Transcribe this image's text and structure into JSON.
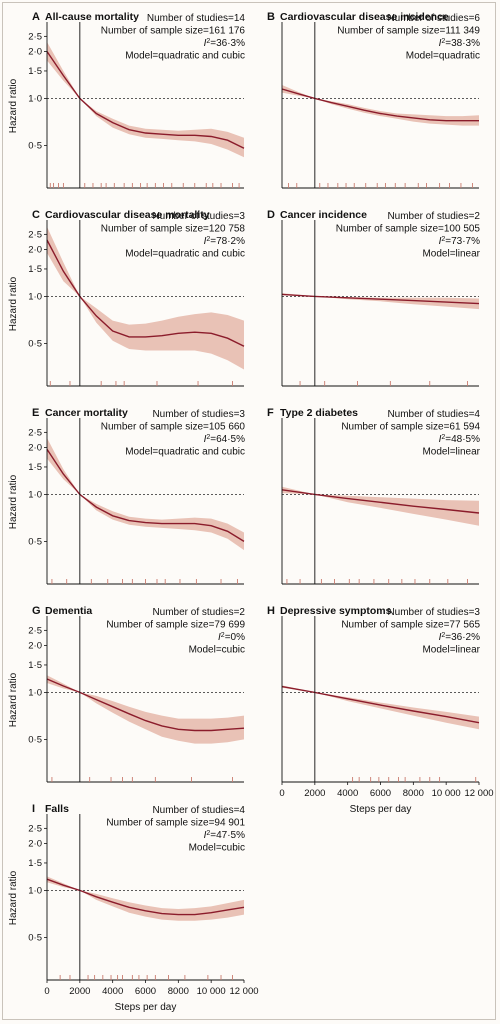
{
  "chart_data": [
    {
      "letter": "A",
      "title": "All-cause mortality",
      "type": "line",
      "stats": [
        "Number of studies=14",
        "Number of sample size=161 176",
        "I²=36·3%",
        "Model=quadratic and cubic"
      ],
      "ylabel": "Hazard ratio",
      "xlabel": "",
      "yticks": [
        {
          "v": 0.5,
          "label": "0·5"
        },
        {
          "v": 1.0,
          "label": "1·0"
        },
        {
          "v": 1.5,
          "label": "1·5"
        },
        {
          "v": 2.0,
          "label": "2·0"
        },
        {
          "v": 2.5,
          "label": "2·5"
        }
      ],
      "xticks": [],
      "reference_x": 2000,
      "reference_y": 1.0,
      "x": [
        0,
        1000,
        2000,
        3000,
        4000,
        5000,
        6000,
        7000,
        8000,
        9000,
        10000,
        11000,
        12000
      ],
      "hr": [
        2.0,
        1.4,
        1.0,
        0.8,
        0.7,
        0.63,
        0.6,
        0.59,
        0.58,
        0.58,
        0.57,
        0.54,
        0.48
      ],
      "lo": [
        1.75,
        1.3,
        1.0,
        0.77,
        0.65,
        0.59,
        0.56,
        0.55,
        0.54,
        0.53,
        0.51,
        0.47,
        0.42
      ],
      "hi": [
        2.3,
        1.5,
        1.0,
        0.83,
        0.74,
        0.67,
        0.64,
        0.63,
        0.62,
        0.63,
        0.64,
        0.61,
        0.56
      ],
      "rug": [
        200,
        400,
        700,
        1000,
        2300,
        2800,
        3300,
        3600,
        4100,
        4700,
        5200,
        5700,
        6100,
        6600,
        7100,
        7600,
        8300,
        9000,
        9700,
        10100,
        10600,
        11300,
        11700
      ]
    },
    {
      "letter": "B",
      "title": "Cardiovascular disease incidence",
      "type": "line",
      "stats": [
        "Number of studies=6",
        "Number of sample size=111 349",
        "I²=38·3%",
        "Model=quadratic"
      ],
      "ylabel": "",
      "xlabel": "",
      "yticks": [],
      "xticks": [],
      "reference_x": 2000,
      "reference_y": 1.0,
      "x": [
        0,
        1000,
        2000,
        3000,
        4000,
        5000,
        6000,
        7000,
        8000,
        9000,
        10000,
        11000,
        12000
      ],
      "hr": [
        1.15,
        1.07,
        1.0,
        0.94,
        0.89,
        0.84,
        0.8,
        0.77,
        0.75,
        0.73,
        0.72,
        0.72,
        0.72
      ],
      "lo": [
        1.09,
        1.04,
        1.0,
        0.92,
        0.86,
        0.81,
        0.77,
        0.74,
        0.71,
        0.69,
        0.68,
        0.67,
        0.67
      ],
      "hi": [
        1.22,
        1.1,
        1.0,
        0.96,
        0.92,
        0.87,
        0.83,
        0.8,
        0.79,
        0.78,
        0.77,
        0.77,
        0.78
      ],
      "rug": [
        400,
        900,
        2300,
        2800,
        3400,
        3900,
        4400,
        5100,
        5800,
        6300,
        6900,
        7500,
        8300,
        8800,
        9600,
        10200,
        10900,
        11600
      ]
    },
    {
      "letter": "C",
      "title": "Cardiovascular disease mortality",
      "type": "line",
      "stats": [
        "Number of studies=3",
        "Number of sample size=120 758",
        "I²=78·2%",
        "Model=quadratic and cubic"
      ],
      "ylabel": "Hazard ratio",
      "xlabel": "",
      "yticks": [
        {
          "v": 0.5,
          "label": "0·5"
        },
        {
          "v": 1.0,
          "label": "1·0"
        },
        {
          "v": 1.5,
          "label": "1·5"
        },
        {
          "v": 2.0,
          "label": "2·0"
        },
        {
          "v": 2.5,
          "label": "2·5"
        }
      ],
      "xticks": [],
      "reference_x": 2000,
      "reference_y": 1.0,
      "x": [
        0,
        1000,
        2000,
        3000,
        4000,
        5000,
        6000,
        7000,
        8000,
        9000,
        10000,
        11000,
        12000
      ],
      "hr": [
        2.3,
        1.45,
        1.0,
        0.75,
        0.6,
        0.55,
        0.55,
        0.56,
        0.58,
        0.59,
        0.58,
        0.54,
        0.48
      ],
      "lo": [
        1.9,
        1.25,
        1.0,
        0.68,
        0.52,
        0.46,
        0.45,
        0.45,
        0.45,
        0.45,
        0.43,
        0.39,
        0.34
      ],
      "hi": [
        2.8,
        1.65,
        1.0,
        0.84,
        0.7,
        0.66,
        0.67,
        0.7,
        0.74,
        0.77,
        0.79,
        0.76,
        0.7
      ],
      "rug": [
        200,
        1400,
        3300,
        4200,
        4700,
        6700,
        9200,
        11300
      ]
    },
    {
      "letter": "D",
      "title": "Cancer incidence",
      "type": "line",
      "stats": [
        "Number of studies=2",
        "Number of sample size=100 505",
        "I²=73·7%",
        "Model=linear"
      ],
      "ylabel": "",
      "xlabel": "",
      "yticks": [],
      "xticks": [],
      "reference_x": 2000,
      "reference_y": 1.0,
      "x": [
        0,
        2000,
        4000,
        6000,
        8000,
        10000,
        12000
      ],
      "hr": [
        1.03,
        1.0,
        0.98,
        0.96,
        0.94,
        0.92,
        0.9
      ],
      "lo": [
        1.02,
        1.0,
        0.96,
        0.93,
        0.89,
        0.86,
        0.83
      ],
      "hi": [
        1.05,
        1.0,
        0.99,
        0.98,
        0.98,
        0.98,
        0.97
      ],
      "rug": [
        1100,
        2600,
        4600,
        6600,
        9000,
        11300
      ]
    },
    {
      "letter": "E",
      "title": "Cancer mortality",
      "type": "line",
      "stats": [
        "Number of studies=3",
        "Number of sample size=105 660",
        "I²=64·5%",
        "Model=quadratic and cubic"
      ],
      "ylabel": "Hazard ratio",
      "xlabel": "",
      "yticks": [
        {
          "v": 0.5,
          "label": "0·5"
        },
        {
          "v": 1.0,
          "label": "1·0"
        },
        {
          "v": 1.5,
          "label": "1·5"
        },
        {
          "v": 2.0,
          "label": "2·0"
        },
        {
          "v": 2.5,
          "label": "2·5"
        }
      ],
      "xticks": [],
      "reference_x": 2000,
      "reference_y": 1.0,
      "x": [
        0,
        1000,
        2000,
        3000,
        4000,
        5000,
        6000,
        7000,
        8000,
        9000,
        10000,
        11000,
        12000
      ],
      "hr": [
        1.95,
        1.35,
        1.0,
        0.83,
        0.73,
        0.68,
        0.66,
        0.65,
        0.65,
        0.65,
        0.63,
        0.58,
        0.5
      ],
      "lo": [
        1.7,
        1.25,
        1.0,
        0.79,
        0.69,
        0.64,
        0.62,
        0.61,
        0.6,
        0.59,
        0.57,
        0.52,
        0.44
      ],
      "hi": [
        2.3,
        1.45,
        1.0,
        0.87,
        0.78,
        0.72,
        0.7,
        0.69,
        0.7,
        0.71,
        0.7,
        0.65,
        0.57
      ],
      "rug": [
        300,
        1200,
        2700,
        3700,
        4600,
        5200,
        6000,
        6700,
        7200,
        8100,
        9100,
        10600,
        11600
      ]
    },
    {
      "letter": "F",
      "title": "Type 2 diabetes",
      "type": "line",
      "stats": [
        "Number of studies=4",
        "Number of sample size=61 594",
        "I²=48·5%",
        "Model=linear"
      ],
      "ylabel": "",
      "xlabel": "",
      "yticks": [],
      "xticks": [],
      "reference_x": 2000,
      "reference_y": 1.0,
      "x": [
        0,
        2000,
        4000,
        6000,
        8000,
        10000,
        12000
      ],
      "hr": [
        1.07,
        1.0,
        0.94,
        0.89,
        0.84,
        0.8,
        0.76
      ],
      "lo": [
        1.02,
        1.0,
        0.89,
        0.82,
        0.75,
        0.69,
        0.63
      ],
      "hi": [
        1.12,
        1.0,
        0.98,
        0.96,
        0.94,
        0.92,
        0.91
      ],
      "rug": [
        300,
        1100,
        2400,
        3200,
        4100,
        4700,
        5600,
        6500,
        7300,
        8100,
        9000,
        10100,
        11300
      ]
    },
    {
      "letter": "G",
      "title": "Dementia",
      "type": "line",
      "stats": [
        "Number of studies=2",
        "Number of sample size=79 699",
        "I²=0%",
        "Model=cubic"
      ],
      "ylabel": "Hazard ratio",
      "xlabel": "",
      "yticks": [
        {
          "v": 0.5,
          "label": "0·5"
        },
        {
          "v": 1.0,
          "label": "1·0"
        },
        {
          "v": 1.5,
          "label": "1·5"
        },
        {
          "v": 2.0,
          "label": "2·0"
        },
        {
          "v": 2.5,
          "label": "2·5"
        }
      ],
      "xticks": [],
      "reference_x": 2000,
      "reference_y": 1.0,
      "x": [
        0,
        1000,
        2000,
        3000,
        4000,
        5000,
        6000,
        7000,
        8000,
        9000,
        10000,
        11000,
        12000
      ],
      "hr": [
        1.22,
        1.1,
        1.0,
        0.9,
        0.81,
        0.73,
        0.66,
        0.61,
        0.58,
        0.57,
        0.57,
        0.58,
        0.59
      ],
      "lo": [
        1.15,
        1.06,
        1.0,
        0.85,
        0.74,
        0.65,
        0.58,
        0.52,
        0.49,
        0.47,
        0.47,
        0.48,
        0.5
      ],
      "hi": [
        1.29,
        1.14,
        1.0,
        0.95,
        0.88,
        0.81,
        0.75,
        0.71,
        0.68,
        0.68,
        0.68,
        0.69,
        0.71
      ],
      "rug": [
        300,
        2600,
        3900,
        4600,
        5200,
        6600,
        8800,
        11300
      ]
    },
    {
      "letter": "H",
      "title": "Depressive symptoms",
      "type": "line",
      "stats": [
        "Number of studies=3",
        "Number of sample size=77 565",
        "I²=36·2%",
        "Model=linear"
      ],
      "ylabel": "",
      "xlabel": "Steps per day",
      "yticks": [],
      "xticks": [
        {
          "v": 0,
          "label": "0"
        },
        {
          "v": 2000,
          "label": "2000"
        },
        {
          "v": 4000,
          "label": "4000"
        },
        {
          "v": 6000,
          "label": "6000"
        },
        {
          "v": 8000,
          "label": "8000"
        },
        {
          "v": 10000,
          "label": "10 000"
        },
        {
          "v": 12000,
          "label": "12 000"
        }
      ],
      "reference_x": 2000,
      "reference_y": 1.0,
      "x": [
        0,
        2000,
        4000,
        6000,
        8000,
        10000,
        12000
      ],
      "hr": [
        1.09,
        1.0,
        0.91,
        0.83,
        0.76,
        0.7,
        0.64
      ],
      "lo": [
        1.07,
        1.0,
        0.88,
        0.79,
        0.71,
        0.64,
        0.58
      ],
      "hi": [
        1.11,
        1.0,
        0.93,
        0.86,
        0.8,
        0.75,
        0.7
      ],
      "rug": [
        4300,
        4700,
        5400,
        5900,
        6500,
        7100,
        7500,
        8400,
        9000,
        9600,
        11800
      ]
    },
    {
      "letter": "I",
      "title": "Falls",
      "type": "line",
      "stats": [
        "Number of studies=4",
        "Number of sample size=94 901",
        "I²=47·5%",
        "Model=cubic"
      ],
      "ylabel": "Hazard ratio",
      "xlabel": "Steps per day",
      "yticks": [
        {
          "v": 0.5,
          "label": "0·5"
        },
        {
          "v": 1.0,
          "label": "1·0"
        },
        {
          "v": 1.5,
          "label": "1·5"
        },
        {
          "v": 2.0,
          "label": "2·0"
        },
        {
          "v": 2.5,
          "label": "2·5"
        }
      ],
      "xticks": [
        {
          "v": 0,
          "label": "0"
        },
        {
          "v": 2000,
          "label": "2000"
        },
        {
          "v": 4000,
          "label": "4000"
        },
        {
          "v": 6000,
          "label": "6000"
        },
        {
          "v": 8000,
          "label": "8000"
        },
        {
          "v": 10000,
          "label": "10 000"
        },
        {
          "v": 12000,
          "label": "12 000"
        }
      ],
      "reference_x": 2000,
      "reference_y": 1.0,
      "x": [
        0,
        1000,
        2000,
        3000,
        4000,
        5000,
        6000,
        7000,
        8000,
        9000,
        10000,
        11000,
        12000
      ],
      "hr": [
        1.18,
        1.08,
        1.0,
        0.91,
        0.84,
        0.78,
        0.74,
        0.71,
        0.7,
        0.7,
        0.72,
        0.75,
        0.78
      ],
      "lo": [
        1.13,
        1.05,
        1.0,
        0.87,
        0.79,
        0.72,
        0.68,
        0.65,
        0.64,
        0.64,
        0.65,
        0.67,
        0.7
      ],
      "hi": [
        1.23,
        1.11,
        1.0,
        0.95,
        0.89,
        0.84,
        0.8,
        0.77,
        0.76,
        0.77,
        0.79,
        0.83,
        0.87
      ],
      "rug": [
        800,
        1400,
        2500,
        2900,
        3400,
        3900,
        4300,
        4600,
        5200,
        5600,
        6100,
        6600,
        7400,
        8400,
        9800,
        10600,
        11300
      ]
    }
  ],
  "colors": {
    "line": "#8b1c2b",
    "band": "#e9c2b6",
    "rug": "#c97b6e",
    "axis": "#111111"
  }
}
